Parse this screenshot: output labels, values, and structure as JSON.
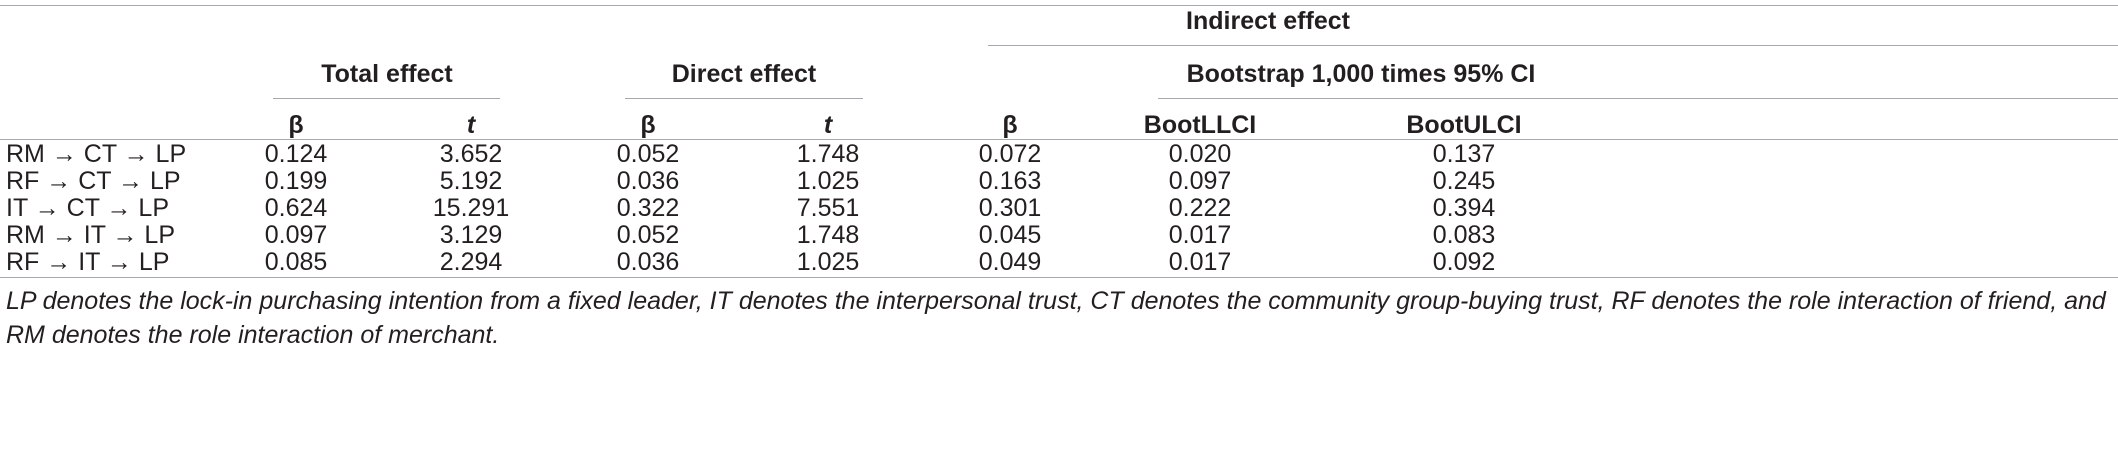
{
  "table": {
    "headers": {
      "total_effect": "Total effect",
      "direct_effect": "Direct effect",
      "indirect_effect": "Indirect effect",
      "bootstrap": "Bootstrap 1,000 times 95% CI",
      "beta": "β",
      "t": "t",
      "boot_llci": "BootLLCI",
      "boot_ulci": "BootULCI"
    },
    "rows": [
      {
        "path": "RM → CT → LP",
        "total_beta": "0.124",
        "total_t": "3.652",
        "direct_beta": "0.052",
        "direct_t": "1.748",
        "indirect_beta": "0.072",
        "llci": "0.020",
        "ulci": "0.137"
      },
      {
        "path": "RF → CT → LP",
        "total_beta": "0.199",
        "total_t": "5.192",
        "direct_beta": "0.036",
        "direct_t": "1.025",
        "indirect_beta": "0.163",
        "llci": "0.097",
        "ulci": "0.245"
      },
      {
        "path": "IT → CT → LP",
        "total_beta": "0.624",
        "total_t": "15.291",
        "direct_beta": "0.322",
        "direct_t": "7.551",
        "indirect_beta": "0.301",
        "llci": "0.222",
        "ulci": "0.394"
      },
      {
        "path": "RM → IT → LP",
        "total_beta": "0.097",
        "total_t": "3.129",
        "direct_beta": "0.052",
        "direct_t": "1.748",
        "indirect_beta": "0.045",
        "llci": "0.017",
        "ulci": "0.083"
      },
      {
        "path": "RF → IT → LP",
        "total_beta": "0.085",
        "total_t": "2.294",
        "direct_beta": "0.036",
        "direct_t": "1.025",
        "indirect_beta": "0.049",
        "llci": "0.017",
        "ulci": "0.092"
      }
    ],
    "footnote": "LP denotes the lock-in purchasing intention from a fixed leader, IT denotes the interpersonal trust, CT denotes the community group-buying trust, RF denotes the role interaction of friend, and RM denotes the role interaction of merchant."
  }
}
